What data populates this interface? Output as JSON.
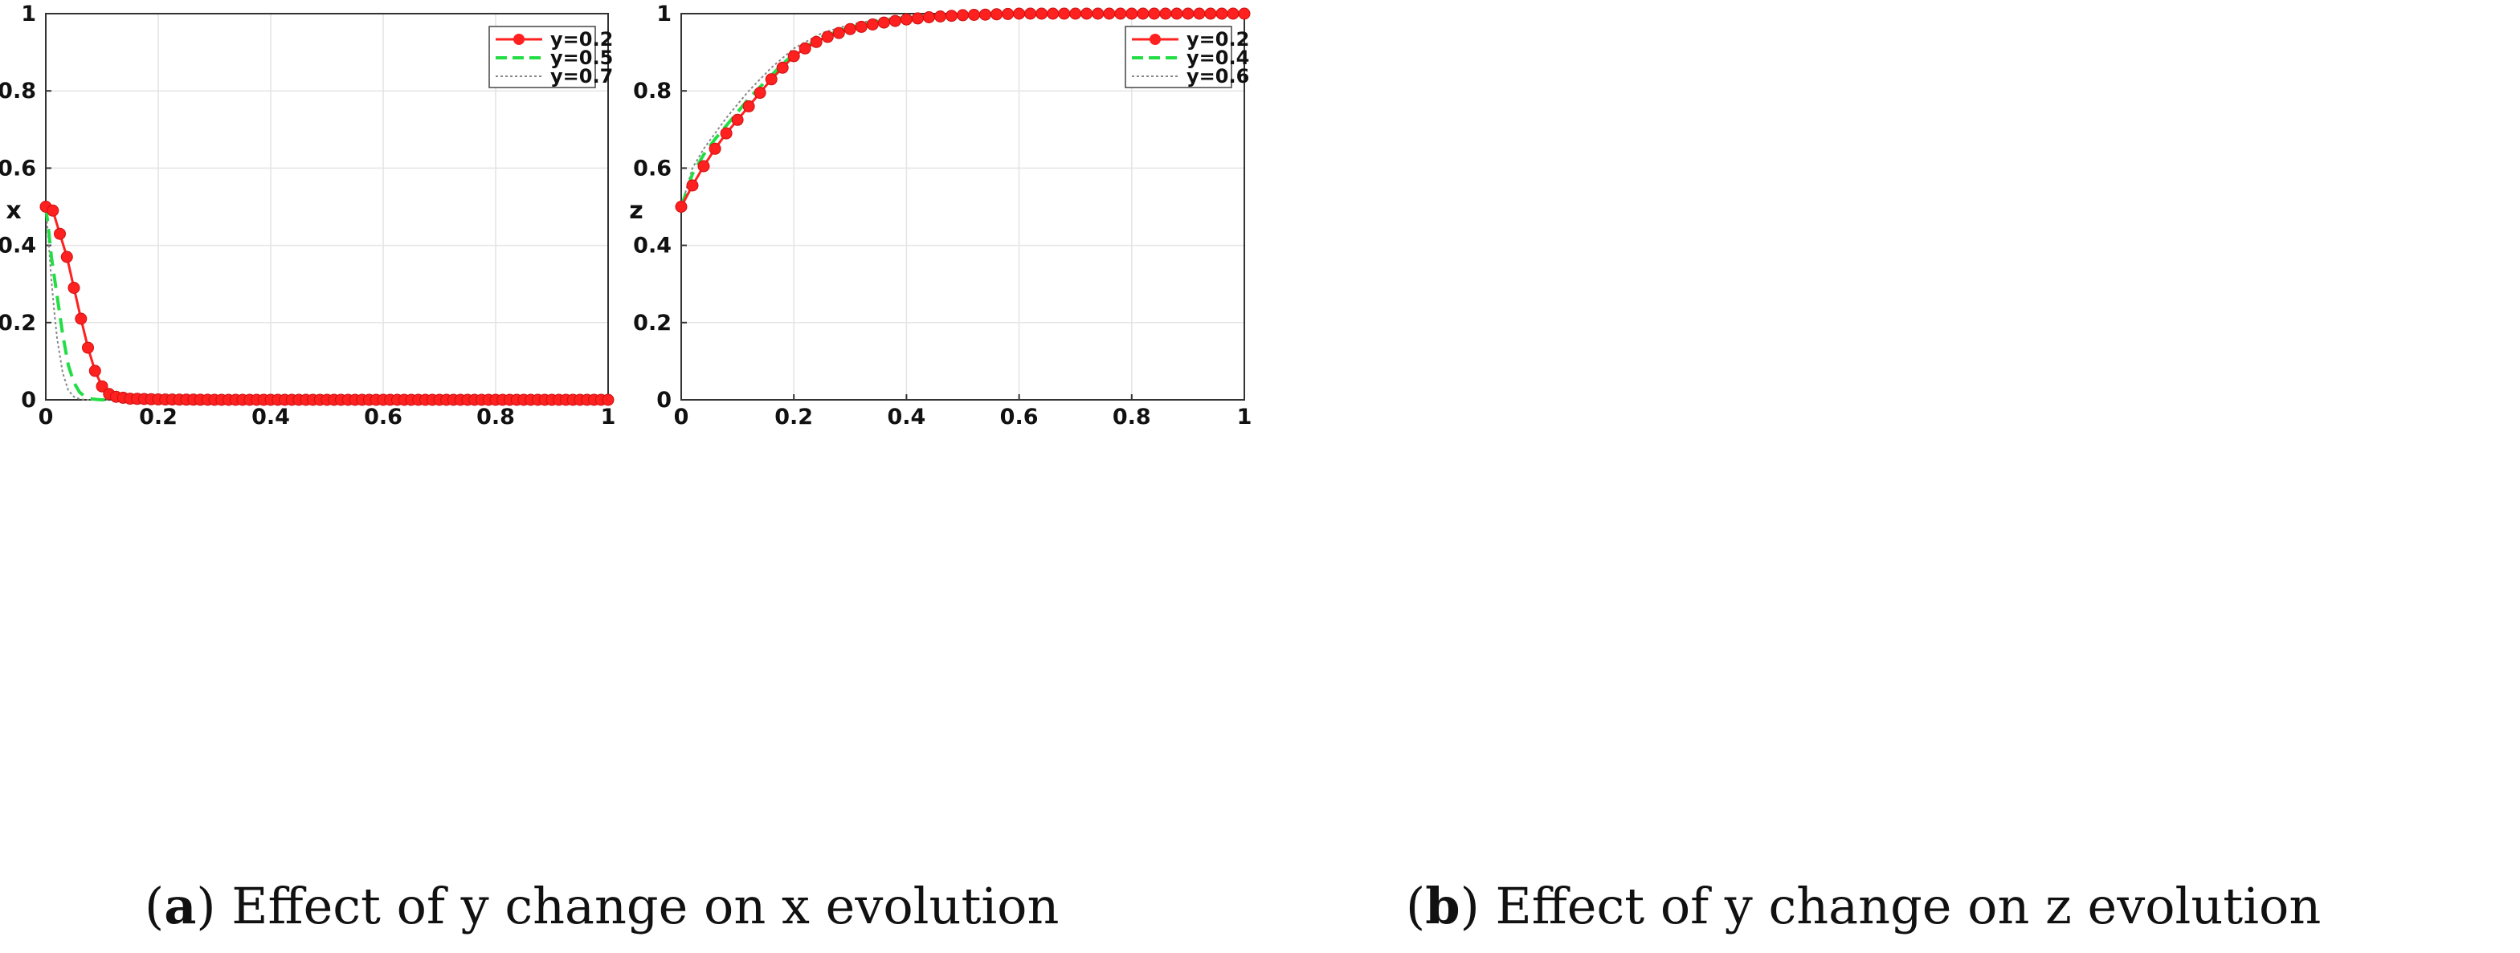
{
  "chart_data": [
    {
      "id": "a",
      "type": "line",
      "title": "",
      "xlabel": "",
      "ylabel": "x",
      "xlim": [
        0,
        1
      ],
      "ylim": [
        0,
        1
      ],
      "xticks": [
        "0",
        "0.2",
        "0.4",
        "0.6",
        "0.8",
        "1"
      ],
      "yticks": [
        "0",
        "0.2",
        "0.4",
        "0.6",
        "0.8",
        "1"
      ],
      "grid": true,
      "legend_position": "top-right",
      "caption": {
        "label": "a",
        "text": "Effect of y change on x evolution"
      },
      "series": [
        {
          "name": "y=0.2",
          "color": "#ff2020",
          "style": "solid-markers",
          "x": [
            0,
            0.0125,
            0.025,
            0.0375,
            0.05,
            0.0625,
            0.075,
            0.0875,
            0.1,
            0.1125,
            0.125,
            0.15,
            0.2,
            0.3,
            0.5,
            1.0
          ],
          "y": [
            0.5,
            0.49,
            0.43,
            0.37,
            0.29,
            0.21,
            0.135,
            0.075,
            0.035,
            0.015,
            0.008,
            0.003,
            0.001,
            0,
            0,
            0
          ]
        },
        {
          "name": "y=0.5",
          "color": "#22dd44",
          "style": "dashed",
          "x": [
            0,
            0.005,
            0.01,
            0.02,
            0.03,
            0.04,
            0.05,
            0.06,
            0.07,
            0.08,
            0.09,
            0.1,
            0.15,
            0.2,
            1.0
          ],
          "y": [
            0.5,
            0.44,
            0.37,
            0.27,
            0.17,
            0.09,
            0.045,
            0.02,
            0.008,
            0.003,
            0.001,
            0,
            0,
            0,
            0
          ]
        },
        {
          "name": "y=0.7",
          "color": "#888888",
          "style": "dotted",
          "x": [
            0,
            0.005,
            0.01,
            0.015,
            0.02,
            0.03,
            0.04,
            0.05,
            0.06,
            0.07,
            0.1,
            0.2,
            1.0
          ],
          "y": [
            0.5,
            0.41,
            0.31,
            0.23,
            0.16,
            0.07,
            0.025,
            0.008,
            0.002,
            0,
            0,
            0,
            0
          ]
        }
      ]
    },
    {
      "id": "b",
      "type": "line",
      "title": "",
      "xlabel": "",
      "ylabel": "z",
      "xlim": [
        0,
        1
      ],
      "ylim": [
        0,
        1
      ],
      "xticks": [
        "0",
        "0.2",
        "0.4",
        "0.6",
        "0.8",
        "1"
      ],
      "yticks": [
        "0",
        "0.2",
        "0.4",
        "0.6",
        "0.8",
        "1"
      ],
      "grid": true,
      "legend_position": "top-right",
      "caption": {
        "label": "b",
        "text": "Effect of y change on z evolution"
      },
      "series": [
        {
          "name": "y=0.2",
          "color": "#ff2020",
          "style": "solid-markers",
          "x": [
            0,
            0.02,
            0.04,
            0.06,
            0.08,
            0.1,
            0.12,
            0.14,
            0.16,
            0.18,
            0.2,
            0.22,
            0.25,
            0.3,
            0.35,
            0.4,
            0.45,
            0.5,
            0.6,
            0.7,
            0.8,
            0.9,
            1.0
          ],
          "y": [
            0.5,
            0.555,
            0.605,
            0.65,
            0.69,
            0.725,
            0.76,
            0.795,
            0.83,
            0.86,
            0.89,
            0.91,
            0.935,
            0.96,
            0.975,
            0.985,
            0.992,
            0.996,
            1.0,
            1.0,
            1.0,
            1.0,
            1.0
          ]
        },
        {
          "name": "y=0.4",
          "color": "#22dd44",
          "style": "dashed",
          "x": [
            0,
            0.02,
            0.04,
            0.06,
            0.08,
            0.1,
            0.12,
            0.14,
            0.16,
            0.18,
            0.2,
            0.25,
            0.3,
            0.35,
            0.4,
            0.5,
            0.6,
            1.0
          ],
          "y": [
            0.5,
            0.585,
            0.635,
            0.675,
            0.71,
            0.745,
            0.78,
            0.81,
            0.84,
            0.87,
            0.895,
            0.94,
            0.965,
            0.98,
            0.99,
            0.997,
            1.0,
            1.0
          ]
        },
        {
          "name": "y=0.6",
          "color": "#888888",
          "style": "dotted",
          "x": [
            0,
            0.02,
            0.04,
            0.06,
            0.08,
            0.1,
            0.12,
            0.14,
            0.16,
            0.18,
            0.2,
            0.25,
            0.3,
            0.35,
            0.4,
            0.5,
            0.6,
            1.0
          ],
          "y": [
            0.5,
            0.6,
            0.65,
            0.69,
            0.73,
            0.765,
            0.8,
            0.83,
            0.86,
            0.885,
            0.91,
            0.95,
            0.972,
            0.985,
            0.993,
            0.998,
            1.0,
            1.0
          ]
        }
      ]
    }
  ]
}
